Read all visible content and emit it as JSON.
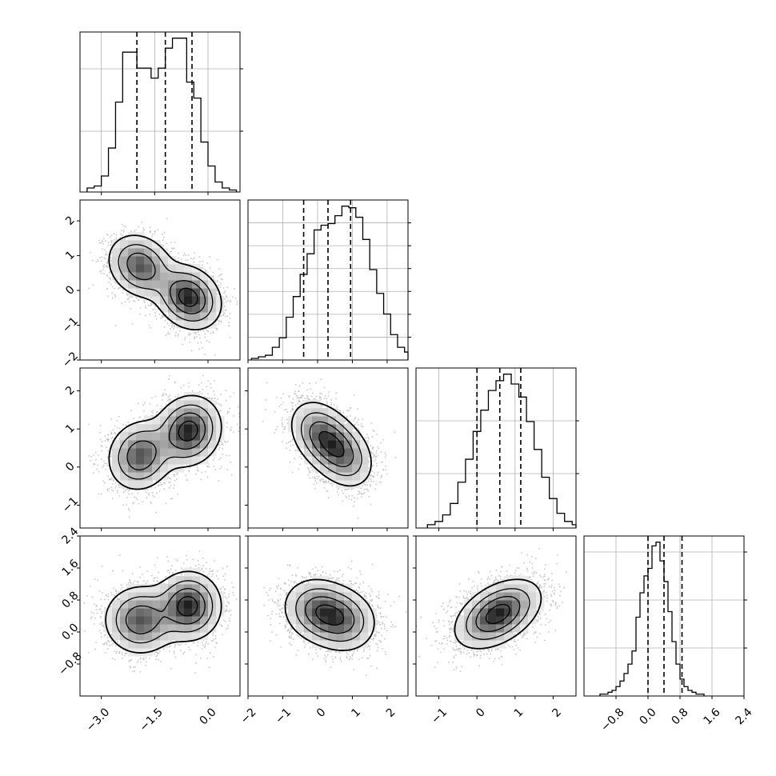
{
  "chart_data": {
    "type": "corner",
    "dimensions": 4,
    "quantiles": [
      0.16,
      0.5,
      0.84
    ],
    "grid": true,
    "variables": [
      {
        "range": [
          -3.6,
          0.9
        ],
        "ticks": [
          -3.0,
          -1.5,
          0.0
        ],
        "tick_labels": [
          "−3.0",
          "−1.5",
          "0.0"
        ],
        "quantile_values": [
          -2.0,
          -1.2,
          -0.45
        ]
      },
      {
        "range": [
          -2.0,
          2.6
        ],
        "ticks": [
          -2,
          -1,
          0,
          1,
          2
        ],
        "tick_labels": [
          "−2",
          "−1",
          "0",
          "1",
          "2"
        ],
        "quantile_values": [
          -0.4,
          0.3,
          0.95
        ]
      },
      {
        "range": [
          -1.6,
          2.6
        ],
        "ticks": [
          -1,
          0,
          1,
          2
        ],
        "tick_labels": [
          "−1",
          "0",
          "1",
          "2"
        ],
        "quantile_values": [
          0.0,
          0.6,
          1.15
        ]
      },
      {
        "range": [
          -1.6,
          2.4
        ],
        "ticks": [
          -0.8,
          0.0,
          0.8,
          1.6,
          2.4
        ],
        "tick_labels": [
          "−0.8",
          "0.0",
          "0.8",
          "1.6",
          "2.4"
        ],
        "quantile_values": [
          0.0,
          0.4,
          0.85
        ]
      }
    ],
    "histograms": [
      {
        "bins_from": -3.4,
        "bin_width": 0.2,
        "counts": [
          2,
          3,
          8,
          22,
          45,
          70,
          70,
          62,
          62,
          57,
          62,
          72,
          77,
          77,
          55,
          47,
          25,
          13,
          5,
          2,
          1
        ]
      },
      {
        "bins_from": -1.9,
        "bin_width": 0.2,
        "counts": [
          1,
          2,
          3,
          8,
          14,
          27,
          40,
          54,
          67,
          82,
          85,
          86,
          91,
          97,
          96,
          90,
          76,
          57,
          42,
          29,
          16,
          8,
          5,
          2
        ]
      },
      {
        "bins_from": -1.3,
        "bin_width": 0.2,
        "counts": [
          2,
          4,
          8,
          15,
          28,
          42,
          59,
          72,
          84,
          90,
          94,
          88,
          80,
          65,
          48,
          31,
          18,
          9,
          4,
          2,
          1,
          1
        ]
      },
      {
        "bins_from": -1.2,
        "bin_width": 0.1,
        "counts": [
          1,
          1,
          2,
          3,
          5,
          8,
          12,
          17,
          24,
          42,
          55,
          64,
          68,
          80,
          82,
          72,
          61,
          45,
          29,
          17,
          9,
          5,
          3,
          2,
          1,
          1
        ]
      }
    ],
    "pair_blobs": [
      {
        "x": 0,
        "y": 1,
        "components": [
          {
            "mx": -1.9,
            "my": 0.7,
            "sx": 0.45,
            "sy": 0.45,
            "w": 0.45,
            "rho": -0.2
          },
          {
            "mx": -0.55,
            "my": -0.2,
            "sx": 0.45,
            "sy": 0.45,
            "w": 0.55,
            "rho": -0.2
          }
        ]
      },
      {
        "x": 0,
        "y": 2,
        "components": [
          {
            "mx": -1.9,
            "my": 0.3,
            "sx": 0.45,
            "sy": 0.45,
            "w": 0.45,
            "rho": 0.1
          },
          {
            "mx": -0.55,
            "my": 0.95,
            "sx": 0.45,
            "sy": 0.45,
            "w": 0.55,
            "rho": 0.1
          }
        ]
      },
      {
        "x": 0,
        "y": 3,
        "components": [
          {
            "mx": -1.9,
            "my": 0.3,
            "sx": 0.5,
            "sy": 0.42,
            "w": 0.45,
            "rho": 0.0
          },
          {
            "mx": -0.55,
            "my": 0.65,
            "sx": 0.45,
            "sy": 0.42,
            "w": 0.55,
            "rho": 0.0
          }
        ]
      },
      {
        "x": 1,
        "y": 2,
        "components": [
          {
            "mx": 0.1,
            "my": 0.85,
            "sx": 0.45,
            "sy": 0.45,
            "w": 0.5,
            "rho": -0.3
          },
          {
            "mx": 0.7,
            "my": 0.35,
            "sx": 0.45,
            "sy": 0.45,
            "w": 0.5,
            "rho": -0.3
          }
        ]
      },
      {
        "x": 1,
        "y": 3,
        "components": [
          {
            "mx": 0.0,
            "my": 0.55,
            "sx": 0.5,
            "sy": 0.4,
            "w": 0.5,
            "rho": -0.1
          },
          {
            "mx": 0.7,
            "my": 0.3,
            "sx": 0.5,
            "sy": 0.4,
            "w": 0.5,
            "rho": -0.1
          }
        ]
      },
      {
        "x": 2,
        "y": 3,
        "components": [
          {
            "mx": 0.55,
            "my": 0.45,
            "sx": 0.55,
            "sy": 0.42,
            "w": 1.0,
            "rho": 0.45
          }
        ]
      }
    ]
  }
}
